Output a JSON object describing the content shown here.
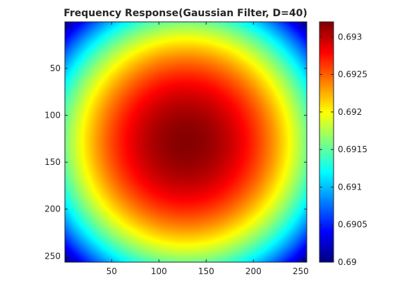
{
  "chart_data": {
    "type": "heatmap",
    "title": "Frequency Response(Gaussian Filter, D=40)",
    "xlabel": "",
    "ylabel": "",
    "colormap": "jet",
    "image_size": [
      256,
      256
    ],
    "center": [
      128.5,
      128.5
    ],
    "filter_parameter_D": 40,
    "xlim": [
      0.5,
      256.5
    ],
    "ylim": [
      0.5,
      256.5
    ],
    "y_axis_direction": "reversed",
    "value_range": [
      0.69,
      0.6932
    ],
    "center_value": 0.69318,
    "corner_value": 0.69,
    "x_ticks": [
      50,
      100,
      150,
      200,
      250
    ],
    "y_ticks": [
      50,
      100,
      150,
      200,
      250
    ],
    "x_tick_labels": [
      "50",
      "100",
      "150",
      "200",
      "250"
    ],
    "y_tick_labels": [
      "50",
      "100",
      "150",
      "200",
      "250"
    ],
    "colorbar": {
      "ticks": [
        0.69,
        0.6905,
        0.691,
        0.6915,
        0.692,
        0.6925,
        0.693
      ],
      "tick_labels": [
        "0.69",
        "0.6905",
        "0.691",
        "0.6915",
        "0.692",
        "0.6925",
        "0.693"
      ]
    },
    "grid": false
  }
}
